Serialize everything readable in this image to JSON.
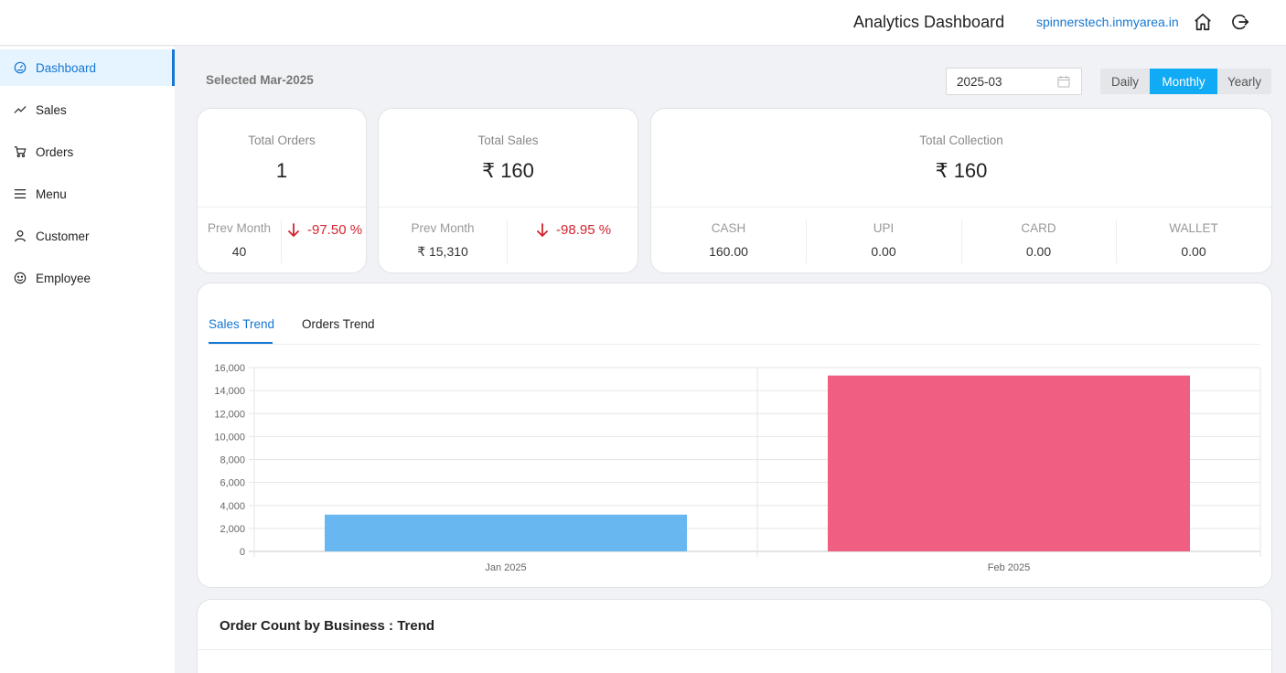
{
  "header": {
    "title": "Analytics Dashboard",
    "site": "spinnerstech.inmyarea.in",
    "home_icon": "home-icon",
    "logout_icon": "logout-icon"
  },
  "sidebar": {
    "items": [
      {
        "label": "Dashboard",
        "icon": "dashboard-icon",
        "active": true
      },
      {
        "label": "Sales",
        "icon": "trend-line-icon"
      },
      {
        "label": "Orders",
        "icon": "cart-icon"
      },
      {
        "label": "Menu",
        "icon": "menu-icon"
      },
      {
        "label": "Customer",
        "icon": "user-icon"
      },
      {
        "label": "Employee",
        "icon": "smile-icon"
      }
    ]
  },
  "toolbar": {
    "selected": "Selected Mar-2025",
    "month_value": "2025-03",
    "periods": [
      "Daily",
      "Monthly",
      "Yearly"
    ],
    "active_period": "Monthly"
  },
  "orders": {
    "title": "Total Orders",
    "value": "1",
    "prev_label": "Prev Month",
    "prev_value": "40",
    "change": "-97.50 %"
  },
  "sales": {
    "title": "Total Sales",
    "value": "₹ 160",
    "prev_label": "Prev Month",
    "prev_value": "₹ 15,310",
    "change": "-98.95 %"
  },
  "collection": {
    "title": "Total Collection",
    "value": "₹ 160",
    "methods": [
      {
        "label": "CASH",
        "value": "160.00"
      },
      {
        "label": "UPI",
        "value": "0.00"
      },
      {
        "label": "CARD",
        "value": "0.00"
      },
      {
        "label": "WALLET",
        "value": "0.00"
      }
    ]
  },
  "trend": {
    "tabs": [
      "Sales Trend",
      "Orders Trend"
    ],
    "active_tab": "Sales Trend"
  },
  "chart_data": {
    "type": "bar",
    "categories": [
      "Jan 2025",
      "Feb 2025"
    ],
    "values": [
      3200,
      15310
    ],
    "colors": [
      "#68b7f0",
      "#f05f82"
    ],
    "ylim": [
      0,
      16000
    ],
    "yticks": [
      0,
      2000,
      4000,
      6000,
      8000,
      10000,
      12000,
      14000,
      16000
    ],
    "ytick_labels": [
      "0",
      "2,000",
      "4,000",
      "6,000",
      "8,000",
      "10,000",
      "12,000",
      "14,000",
      "16,000"
    ],
    "grid": true,
    "xlabel": "",
    "ylabel": ""
  },
  "business": {
    "title": "Order Count by Business : Trend"
  }
}
